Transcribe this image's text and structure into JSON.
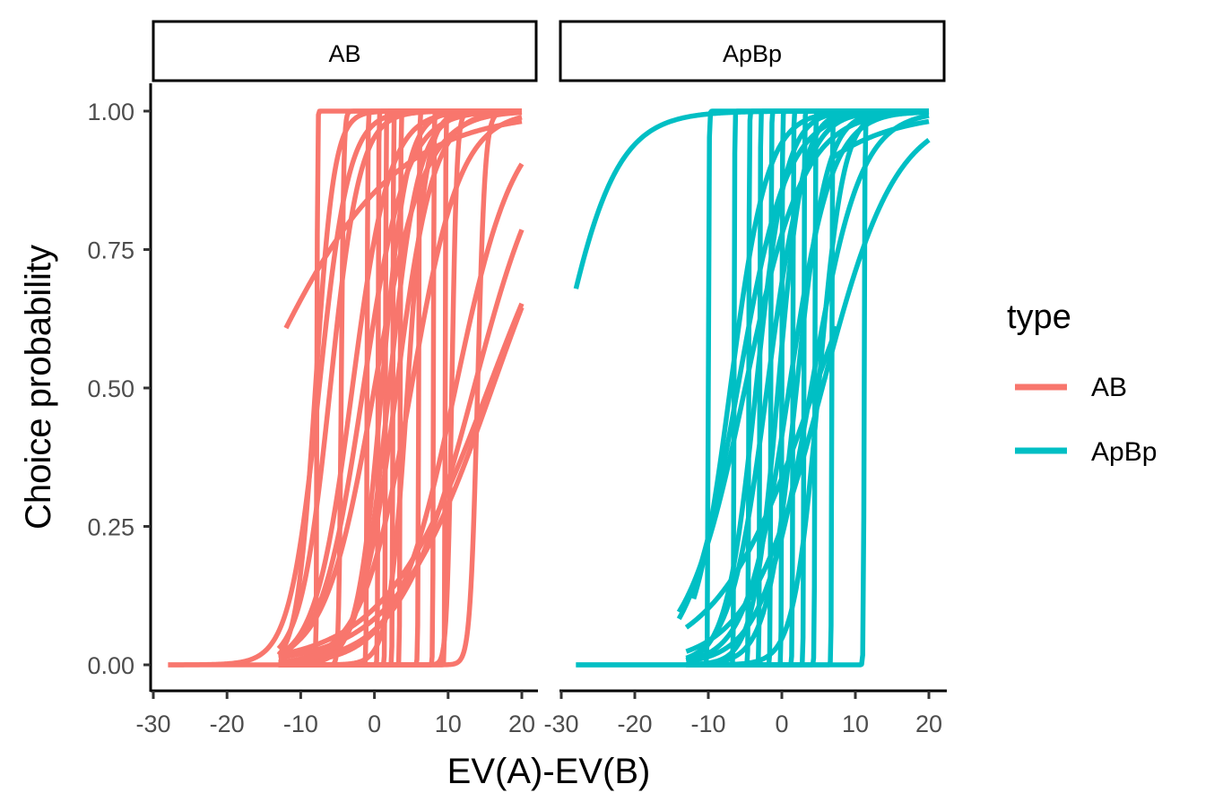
{
  "chart_data": {
    "type": "line",
    "xlabel": "EV(A)-EV(B)",
    "ylabel": "Choice probability",
    "xlim": [
      -30,
      20
    ],
    "ylim": [
      0,
      1
    ],
    "x_ticks": [
      -30,
      -20,
      -10,
      0,
      10,
      20
    ],
    "x_tick_labels": [
      "-30",
      "-20",
      "-10",
      "0",
      "10",
      "20"
    ],
    "y_ticks": [
      0,
      0.25,
      0.5,
      0.75,
      1
    ],
    "y_tick_labels": [
      "0.00",
      "0.25",
      "0.50",
      "0.75",
      "1.00"
    ],
    "grid": false,
    "legend": {
      "title": "type",
      "placement": "right",
      "entries": [
        {
          "label": "AB",
          "color": "#F8766D"
        },
        {
          "label": "ApBp",
          "color": "#00BFC4"
        }
      ]
    },
    "facets": [
      {
        "label": "AB",
        "color": "#F8766D",
        "curves": [
          {
            "midpoint": -7.8,
            "slope": 25,
            "x_start": -28,
            "x_end": 20
          },
          {
            "midpoint": -7.5,
            "slope": 0.5,
            "x_start": -28,
            "x_end": 20
          },
          {
            "midpoint": -8,
            "slope": 0.8,
            "x_start": -13,
            "x_end": 20
          },
          {
            "midpoint": -16,
            "slope": 0.11,
            "x_start": -12,
            "x_end": 20
          },
          {
            "midpoint": -6,
            "slope": 0.5,
            "x_start": -13,
            "x_end": 20
          },
          {
            "midpoint": -4.5,
            "slope": 6,
            "x_start": -13,
            "x_end": 20
          },
          {
            "midpoint": -3,
            "slope": 0.4,
            "x_start": -13,
            "x_end": 20
          },
          {
            "midpoint": -1.5,
            "slope": 0.35,
            "x_start": -13,
            "x_end": 20
          },
          {
            "midpoint": -1,
            "slope": 20,
            "x_start": -13,
            "x_end": 20
          },
          {
            "midpoint": 0,
            "slope": 0.3,
            "x_start": -13,
            "x_end": 20
          },
          {
            "midpoint": 0.5,
            "slope": 25,
            "x_start": -13,
            "x_end": 20
          },
          {
            "midpoint": 1,
            "slope": 0.6,
            "x_start": -13,
            "x_end": 20
          },
          {
            "midpoint": 1.5,
            "slope": 25,
            "x_start": -13,
            "x_end": 20
          },
          {
            "midpoint": 2,
            "slope": 0.5,
            "x_start": -13,
            "x_end": 20
          },
          {
            "midpoint": 2.5,
            "slope": 25,
            "x_start": -13,
            "x_end": 20
          },
          {
            "midpoint": 3,
            "slope": 0.4,
            "x_start": -13,
            "x_end": 20
          },
          {
            "midpoint": 3.5,
            "slope": 25,
            "x_start": -13,
            "x_end": 20
          },
          {
            "midpoint": 4.5,
            "slope": 0.8,
            "x_start": -13,
            "x_end": 20
          },
          {
            "midpoint": 5,
            "slope": 0.3,
            "x_start": -13,
            "x_end": 20
          },
          {
            "midpoint": 6,
            "slope": 20,
            "x_start": -13,
            "x_end": 20
          },
          {
            "midpoint": 8,
            "slope": 25,
            "x_start": -13,
            "x_end": 20
          },
          {
            "midpoint": 9.6,
            "slope": 25,
            "x_start": -13,
            "x_end": 20
          },
          {
            "midpoint": 10.5,
            "slope": 3,
            "x_start": -13,
            "x_end": 20
          },
          {
            "midpoint": 11,
            "slope": 0.25,
            "x_start": -13,
            "x_end": 20
          },
          {
            "midpoint": 13.5,
            "slope": 0.2,
            "x_start": -13,
            "x_end": 20
          },
          {
            "midpoint": 14,
            "slope": 2,
            "x_start": -13,
            "x_end": 20
          },
          {
            "midpoint": 15.5,
            "slope": 0.14,
            "x_start": -13,
            "x_end": 20
          },
          {
            "midpoint": 16,
            "slope": 0.15,
            "x_start": -13,
            "x_end": 20
          }
        ]
      },
      {
        "label": "ApBp",
        "color": "#00BFC4",
        "curves": [
          {
            "midpoint": -31,
            "slope": 0.25,
            "x_start": -28,
            "x_end": 20
          },
          {
            "midpoint": -10,
            "slope": 20,
            "x_start": -28,
            "x_end": 20
          },
          {
            "midpoint": 11.2,
            "slope": 20,
            "x_start": -28,
            "x_end": 20
          },
          {
            "midpoint": -7,
            "slope": 0.4,
            "x_start": -12,
            "x_end": 20
          },
          {
            "midpoint": -6.5,
            "slope": 25,
            "x_start": -13,
            "x_end": 20
          },
          {
            "midpoint": -6,
            "slope": 0.3,
            "x_start": -14,
            "x_end": 20
          },
          {
            "midpoint": -5,
            "slope": 0.25,
            "x_start": -14,
            "x_end": 20
          },
          {
            "midpoint": -4.5,
            "slope": 25,
            "x_start": -13,
            "x_end": 20
          },
          {
            "midpoint": -3.5,
            "slope": 0.5,
            "x_start": -13,
            "x_end": 20
          },
          {
            "midpoint": -3,
            "slope": 25,
            "x_start": -13,
            "x_end": 20
          },
          {
            "midpoint": -2,
            "slope": 0.4,
            "x_start": -13,
            "x_end": 20
          },
          {
            "midpoint": -1.5,
            "slope": 25,
            "x_start": -13,
            "x_end": 20
          },
          {
            "midpoint": -0.5,
            "slope": 0.6,
            "x_start": -13,
            "x_end": 20
          },
          {
            "midpoint": 0,
            "slope": 25,
            "x_start": -13,
            "x_end": 20
          },
          {
            "midpoint": 1,
            "slope": 0.35,
            "x_start": -13,
            "x_end": 20
          },
          {
            "midpoint": 1.5,
            "slope": 25,
            "x_start": -13,
            "x_end": 20
          },
          {
            "midpoint": 2,
            "slope": 0.5,
            "x_start": -13,
            "x_end": 20
          },
          {
            "midpoint": 3,
            "slope": 25,
            "x_start": -13,
            "x_end": 20
          },
          {
            "midpoint": 4,
            "slope": 0.3,
            "x_start": -13,
            "x_end": 20
          },
          {
            "midpoint": 4.5,
            "slope": 25,
            "x_start": -13,
            "x_end": 20
          },
          {
            "midpoint": 5,
            "slope": 0.6,
            "x_start": -13,
            "x_end": 20
          },
          {
            "midpoint": 5.5,
            "slope": 0.2,
            "x_start": -13,
            "x_end": 20
          },
          {
            "midpoint": 6.8,
            "slope": 25,
            "x_start": -13,
            "x_end": 20
          },
          {
            "midpoint": 4.5,
            "slope": 0.15,
            "x_start": -13,
            "x_end": 7.5
          },
          {
            "midpoint": -13,
            "slope": 0.12,
            "x_start": 7,
            "x_end": 20
          }
        ]
      }
    ]
  }
}
